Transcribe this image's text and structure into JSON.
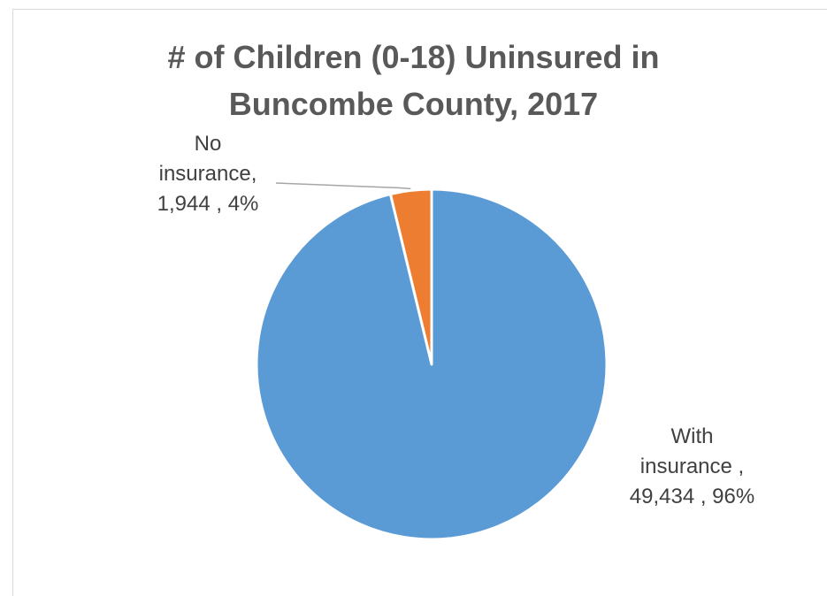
{
  "chart_data": {
    "type": "pie",
    "title_line1": "# of Children (0-18) Uninsured in",
    "title_line2": "Buncombe County, 2017",
    "slices": [
      {
        "name": "No insurance",
        "value": 1944,
        "percent": 4,
        "label_lines": [
          "No",
          "insurance,",
          "1,944 , 4%"
        ],
        "color": "#ED7D31"
      },
      {
        "name": "With insurance",
        "value": 49434,
        "percent": 96,
        "label_lines": [
          "With",
          "insurance ,",
          "49,434 , 96%"
        ],
        "color": "#5B9BD5"
      }
    ],
    "leader_line_color": "#a6a6a6"
  }
}
